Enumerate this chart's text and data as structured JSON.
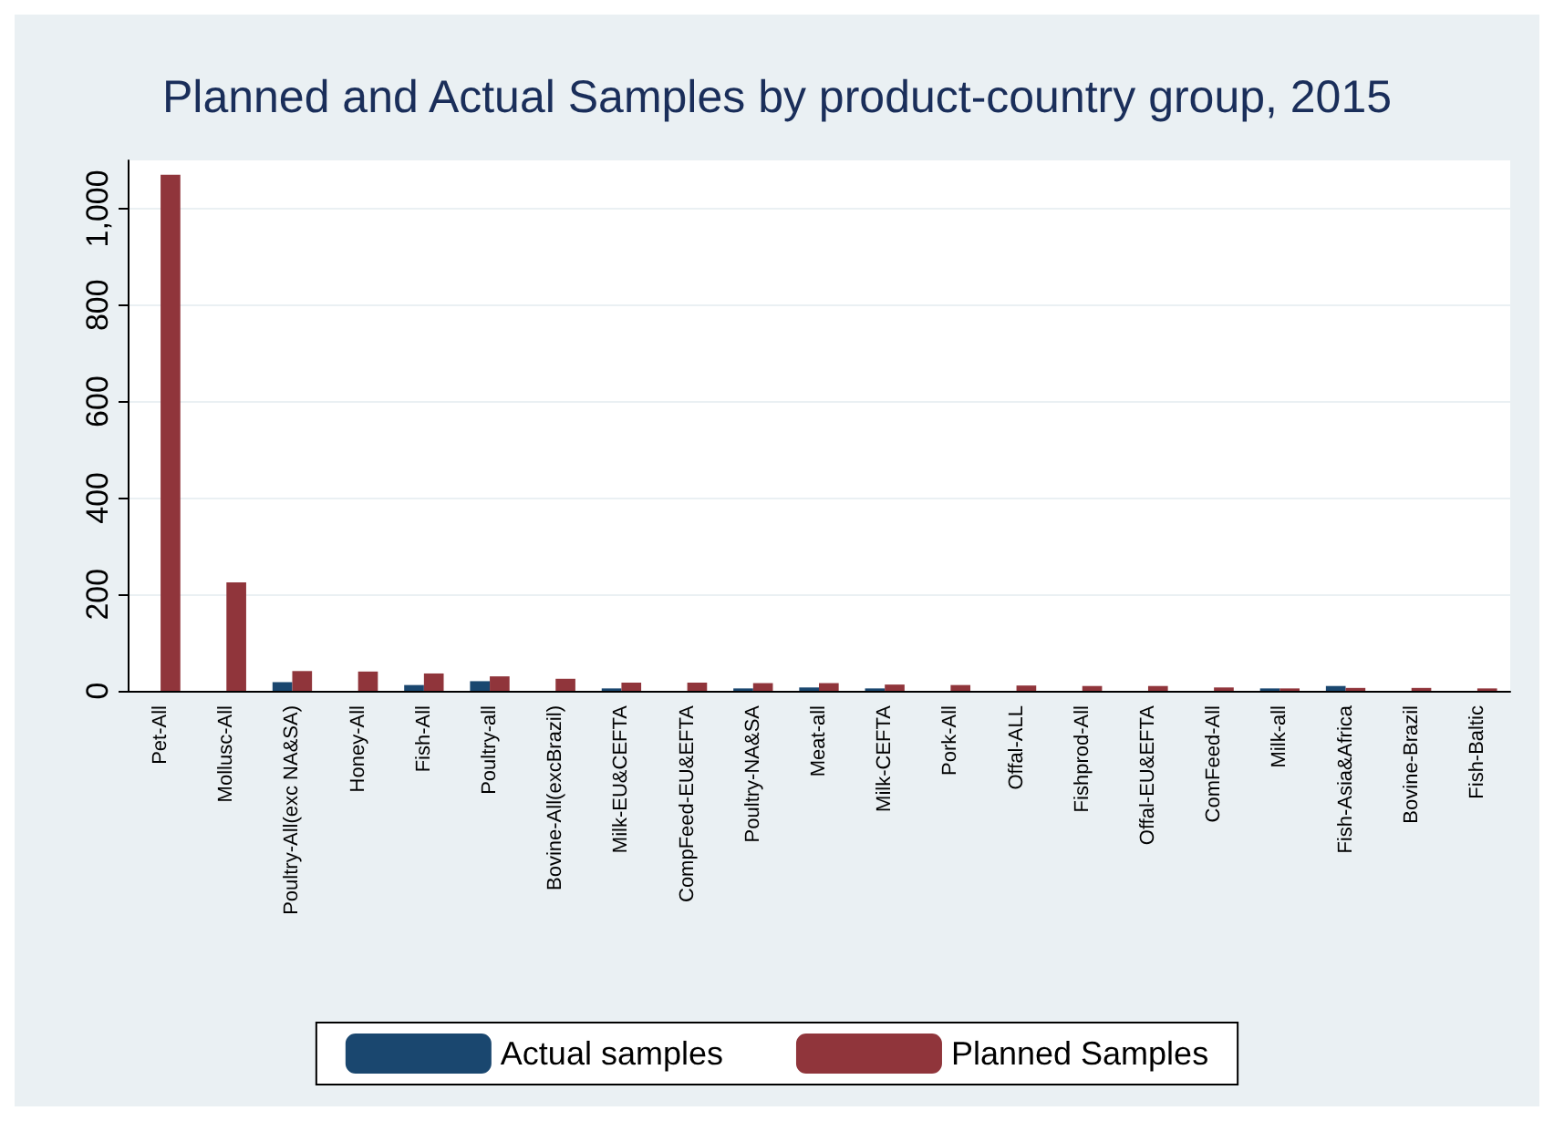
{
  "chart_data": {
    "type": "bar",
    "title": "Planned and Actual Samples by product-country group, 2015",
    "categories": [
      "Pet-All",
      "Mollusc-All",
      "Poultry-All(exc NA&SA)",
      "Honey-All",
      "Fish-All",
      "Poultry-all",
      "Bovine-All(excBrazil)",
      "Milk-EU&CEFTA",
      "CompFeed-EU&EFTA",
      "Poultry-NA&SA",
      "Meat-all",
      "Milk-CEFTA",
      "Pork-All",
      "Offal-ALL",
      "Fishprod-All",
      "Offal-EU&EFTA",
      "ComFeed-All",
      "Milk-all",
      "Fish-Asia&Africa",
      "Bovine-Brazil",
      "Fish-Baltic"
    ],
    "series": [
      {
        "name": "Actual samples",
        "color": "#1a476f",
        "values": [
          0,
          0,
          18,
          0,
          12,
          20,
          0,
          5,
          0,
          5,
          7,
          5,
          0,
          0,
          0,
          0,
          0,
          5,
          10,
          0,
          0
        ]
      },
      {
        "name": "Planned Samples",
        "color": "#90353b",
        "values": [
          1070,
          225,
          41,
          40,
          36,
          30,
          25,
          17,
          17,
          16,
          16,
          13,
          12,
          11,
          10,
          10,
          7,
          5,
          6,
          6,
          5
        ]
      }
    ],
    "ylim": [
      0,
      1100
    ],
    "yticks": [
      0,
      200,
      400,
      600,
      800,
      {
        "value": 1000,
        "label": "1,000"
      }
    ],
    "grid": "y",
    "legend": "bottom"
  }
}
